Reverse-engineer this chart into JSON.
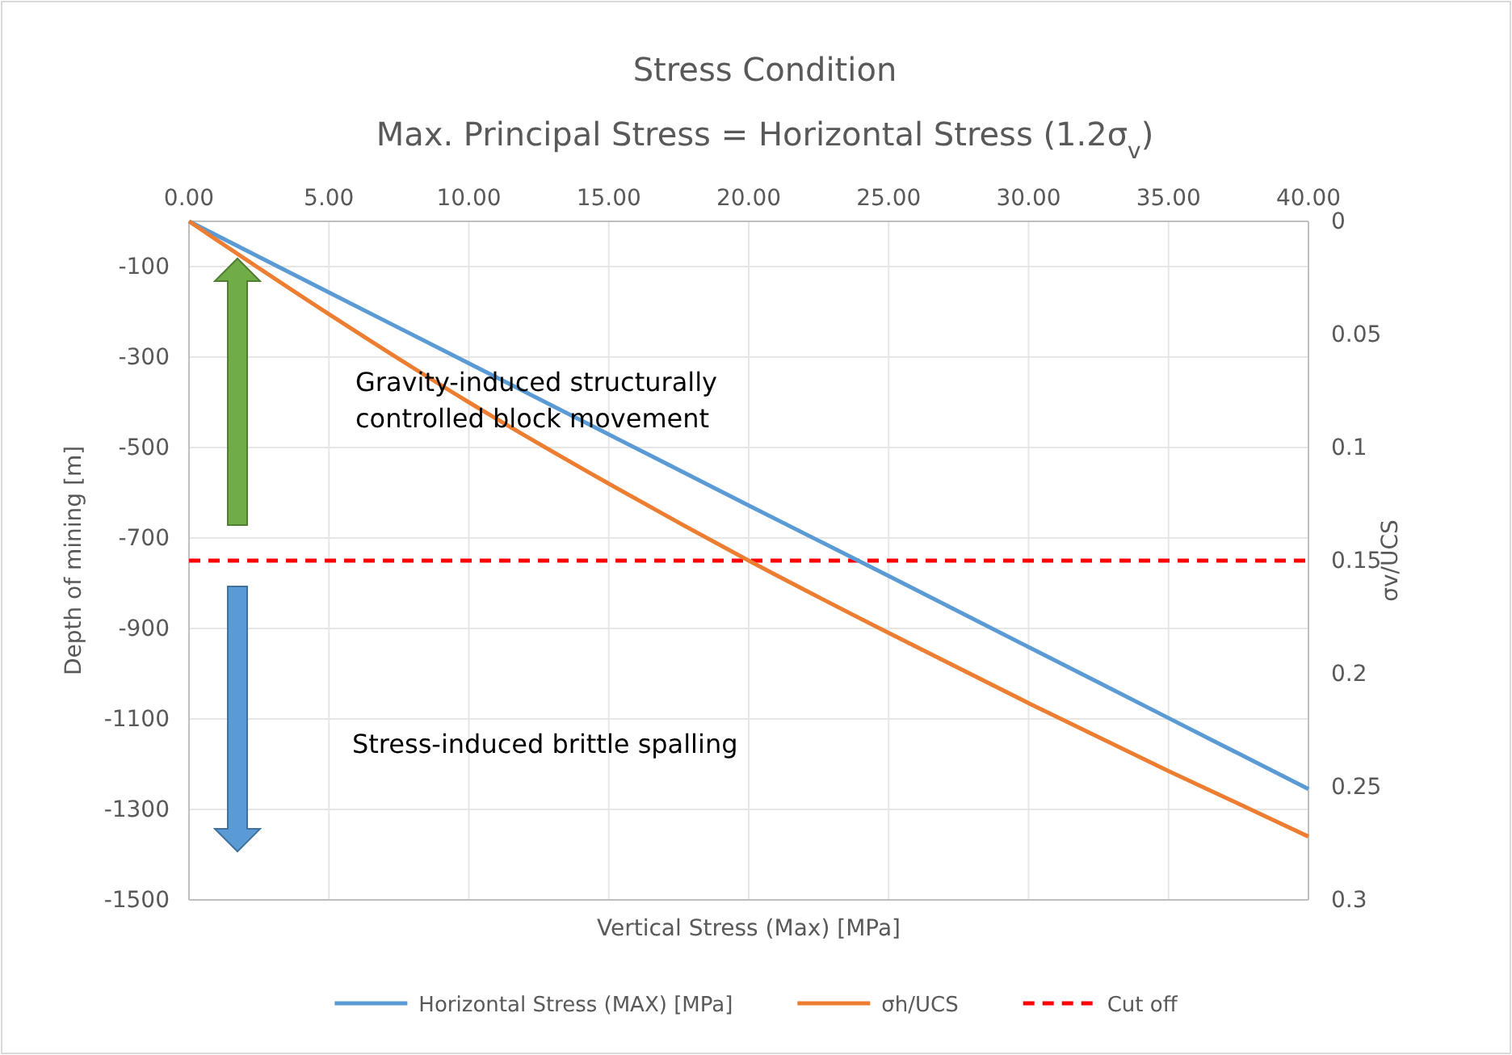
{
  "chart_data": {
    "type": "line",
    "title": "Stress Condition",
    "subtitle": "Max. Principal Stress = Horizontal Stress (1.2σ$_{v}$)",
    "xlabel": "Vertical Stress (Max) [MPa]",
    "ylabel": "Depth of mining [m]",
    "y2label": "σv/UCS",
    "x": [
      0,
      5,
      10,
      15,
      20,
      25,
      30,
      35,
      40
    ],
    "series": [
      {
        "name": "Horizontal Stress (MAX) [MPa]",
        "color": "#5b9bd5",
        "values": [
          0,
          -157,
          -314,
          -471,
          -628,
          -784,
          -941,
          -1098,
          -1255
        ]
      },
      {
        "name": "σh/UCS",
        "color": "#ed7d31",
        "axis": "y2",
        "values": [
          0,
          0.041,
          0.08,
          0.116,
          0.15,
          0.182,
          0.213,
          0.243,
          0.272
        ]
      }
    ],
    "xlim": [
      0,
      40
    ],
    "xticks": [
      {
        "value": 0,
        "label": "0.00"
      },
      {
        "value": 5,
        "label": "5.00"
      },
      {
        "value": 10,
        "label": "10.00"
      },
      {
        "value": 15,
        "label": "15.00"
      },
      {
        "value": 20,
        "label": "20.00"
      },
      {
        "value": 25,
        "label": "25.00"
      },
      {
        "value": 30,
        "label": "30.00"
      },
      {
        "value": 35,
        "label": "35.00"
      },
      {
        "value": 40,
        "label": "40.00"
      }
    ],
    "ylim": [
      -1500,
      0
    ],
    "yticks": [
      -100,
      -300,
      -500,
      -700,
      -900,
      -1100,
      -1300,
      -1500
    ],
    "y2lim": [
      0.3,
      0
    ],
    "y2ticks": [
      0,
      0.05,
      0.1,
      0.15,
      0.2,
      0.25,
      0.3
    ],
    "ref_lines": [
      {
        "axis": "y2",
        "value": 0.15,
        "label": "Cut off",
        "color": "#ff0000",
        "line_style": "dashed"
      }
    ],
    "annotations": [
      "Gravity-induced structurally controlled block movement",
      "Stress-induced brittle spalling"
    ],
    "grid": true,
    "legend": "bottom",
    "marker": "none",
    "line_style": "solid"
  }
}
